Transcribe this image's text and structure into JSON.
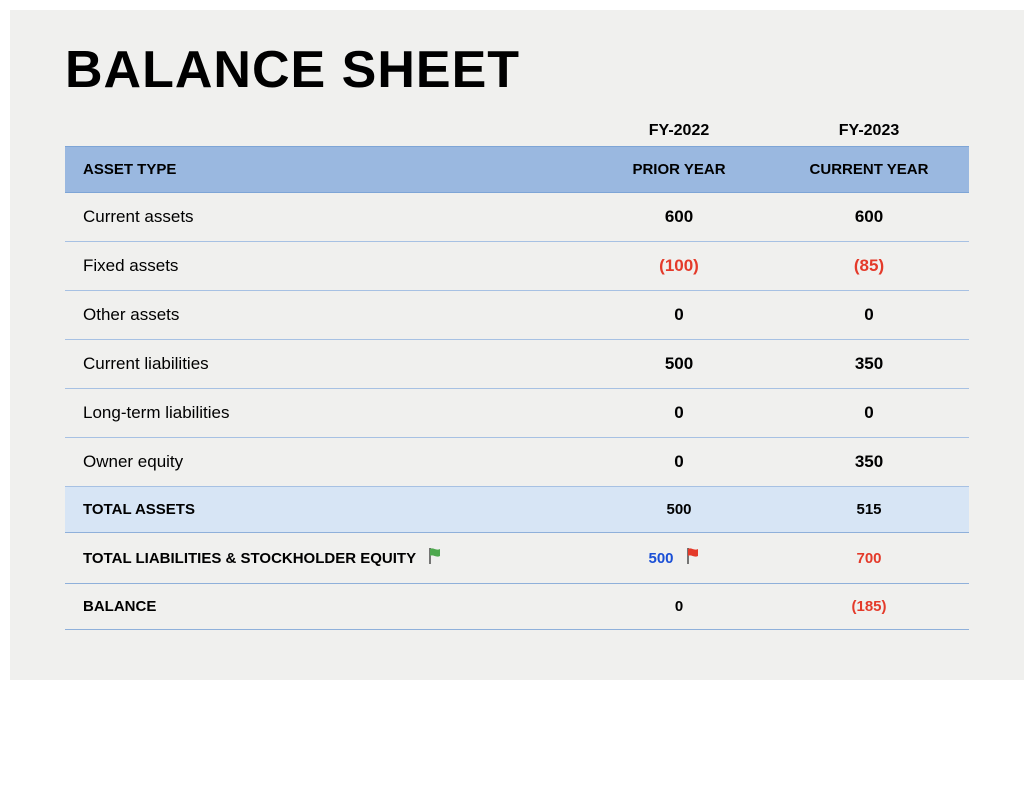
{
  "title": "BALANCE SHEET",
  "fy_labels": {
    "prior": "FY-2022",
    "current": "FY-2023"
  },
  "columns": {
    "asset_type": "ASSET TYPE",
    "prior": "PRIOR YEAR",
    "current": "CURRENT YEAR"
  },
  "rows": [
    {
      "label": "Current assets",
      "prior": "600",
      "current": "600",
      "prior_neg": false,
      "current_neg": false
    },
    {
      "label": "Fixed assets",
      "prior": "(100)",
      "current": "(85)",
      "prior_neg": true,
      "current_neg": true
    },
    {
      "label": "Other assets",
      "prior": "0",
      "current": "0",
      "prior_neg": false,
      "current_neg": false
    },
    {
      "label": "Current liabilities",
      "prior": "500",
      "current": "350",
      "prior_neg": false,
      "current_neg": false
    },
    {
      "label": "Long-term liabilities",
      "prior": "0",
      "current": "0",
      "prior_neg": false,
      "current_neg": false
    },
    {
      "label": "Owner equity",
      "prior": "0",
      "current": "350",
      "prior_neg": false,
      "current_neg": false
    }
  ],
  "totals": {
    "assets": {
      "label": "TOTAL ASSETS",
      "prior": "500",
      "current": "515"
    },
    "liab_equity": {
      "label": "TOTAL LIABILITIES & STOCKHOLDER EQUITY",
      "prior": "500",
      "current": "700",
      "prior_color": "blue",
      "current_color": "red",
      "prior_flag_color": "#4ea84e",
      "current_flag_color": "#e43a2a"
    },
    "balance": {
      "label": "BALANCE",
      "prior": "0",
      "current": "(185)",
      "current_neg": true
    }
  },
  "style": {
    "header_bg": "#9ab8e0",
    "total_bg": "#d7e5f5",
    "row_border": "#a7c1e3",
    "background": "#f0f0ee",
    "neg_color": "#e43a2a",
    "blue_color": "#1a4fd6",
    "title_fontsize": 52,
    "cell_fontsize": 17,
    "header_fontsize": 15
  }
}
